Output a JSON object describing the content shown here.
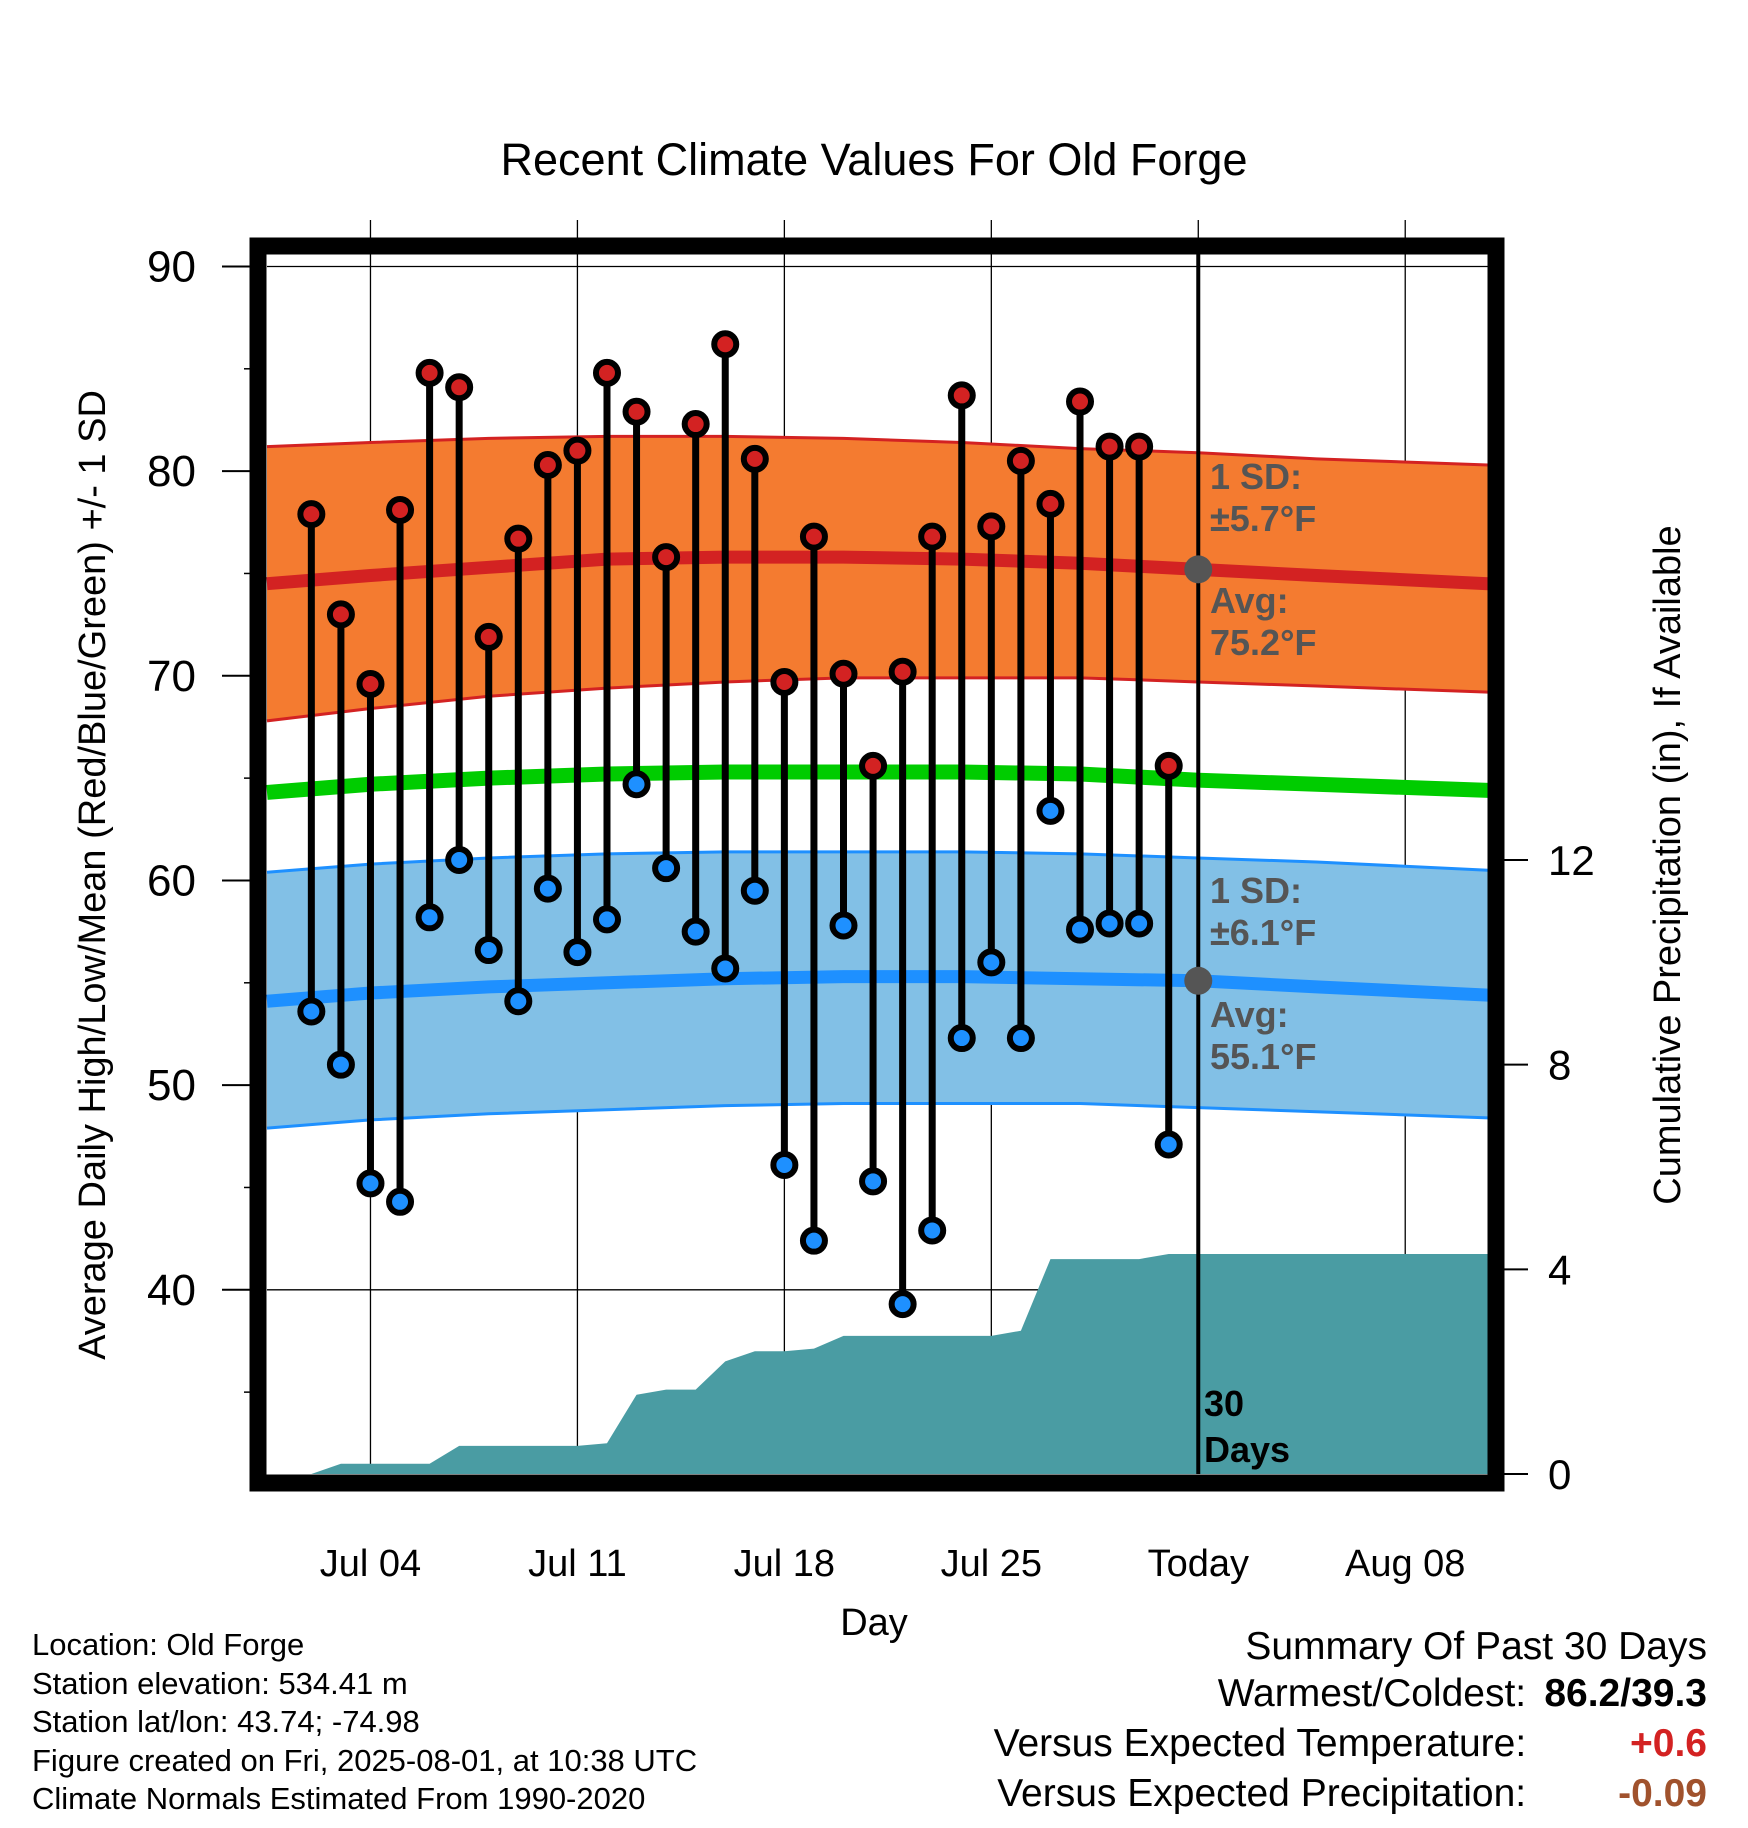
{
  "chart_data": {
    "type": "line",
    "title": "Recent Climate Values For Old Forge",
    "xlabel": "Day",
    "ylabel": "Average Daily High/Low/Mean (Red/Blue/Green) +/- 1 SD",
    "y2label": "Cumulative Precipitation (in), If Available",
    "ylim": [
      31,
      91
    ],
    "y_ticks": [
      "40",
      "50",
      "60",
      "70",
      "80",
      "90"
    ],
    "y2lim": [
      0,
      24
    ],
    "y2_ticks": [
      "0",
      "4",
      "8",
      "12"
    ],
    "x_tick_labels": [
      "Jul 04",
      "Jul 11",
      "Jul 18",
      "Jul 25",
      "Today",
      "Aug 08"
    ],
    "x_tick_days": [
      4,
      11,
      18,
      25,
      32,
      39
    ],
    "x_range_days": [
      0.5,
      41.8
    ],
    "today_day": 32,
    "grid": true,
    "highs": {
      "days": [
        2,
        3,
        4,
        5,
        6,
        7,
        8,
        9,
        10,
        11,
        12,
        13,
        14,
        15,
        16,
        17,
        18,
        19,
        20,
        21,
        22,
        23,
        24,
        25,
        26,
        27,
        28,
        29,
        30,
        31
      ],
      "values": [
        77.9,
        73,
        69.6,
        78.1,
        84.8,
        84.1,
        71.9,
        76.7,
        80.3,
        81,
        84.8,
        82.9,
        75.8,
        82.3,
        86.2,
        80.6,
        69.7,
        76.8,
        70.1,
        65.6,
        70.2,
        76.8,
        83.7,
        77.3,
        80.5,
        78.4,
        83.4,
        81.2,
        81.2,
        65.6
      ]
    },
    "lows": {
      "days": [
        2,
        3,
        4,
        5,
        6,
        7,
        8,
        9,
        10,
        11,
        12,
        13,
        14,
        15,
        16,
        17,
        18,
        19,
        20,
        21,
        22,
        23,
        24,
        25,
        26,
        27,
        28,
        29,
        30,
        31
      ],
      "values": [
        53.6,
        51,
        45.2,
        44.3,
        58.2,
        61,
        56.6,
        54.1,
        59.6,
        56.5,
        58.1,
        64.7,
        60.6,
        57.5,
        55.7,
        59.5,
        46.1,
        42.4,
        57.8,
        45.3,
        39.3,
        42.9,
        52.3,
        56,
        52.3,
        63.4,
        57.6,
        57.9,
        57.9,
        47.1
      ]
    },
    "normal_high": {
      "days": [
        0.5,
        4,
        8,
        12,
        16,
        20,
        24,
        28,
        32,
        36,
        41.8
      ],
      "avg": [
        74.5,
        74.9,
        75.3,
        75.7,
        75.8,
        75.8,
        75.7,
        75.5,
        75.2,
        74.9,
        74.5
      ],
      "upper": [
        81.2,
        81.4,
        81.6,
        81.7,
        81.7,
        81.6,
        81.4,
        81.1,
        80.9,
        80.6,
        80.3
      ],
      "lower": [
        67.8,
        68.4,
        69,
        69.4,
        69.7,
        69.9,
        69.9,
        69.9,
        69.7,
        69.5,
        69.2
      ]
    },
    "normal_mean": {
      "days": [
        0.5,
        4,
        8,
        12,
        16,
        20,
        24,
        28,
        32,
        36,
        41.8
      ],
      "values": [
        64.3,
        64.7,
        65,
        65.2,
        65.3,
        65.3,
        65.3,
        65.2,
        64.9,
        64.7,
        64.4
      ]
    },
    "normal_low": {
      "days": [
        0.5,
        4,
        8,
        12,
        16,
        20,
        24,
        28,
        32,
        36,
        41.8
      ],
      "avg": [
        54.1,
        54.5,
        54.8,
        55,
        55.2,
        55.3,
        55.3,
        55.2,
        55.1,
        54.8,
        54.4
      ],
      "upper": [
        60.4,
        60.8,
        61.1,
        61.3,
        61.4,
        61.4,
        61.4,
        61.3,
        61.1,
        60.9,
        60.5
      ],
      "lower": [
        47.9,
        48.3,
        48.6,
        48.8,
        49,
        49.1,
        49.1,
        49.1,
        48.9,
        48.7,
        48.4
      ]
    },
    "precip_cumulative": {
      "days": [
        2,
        3,
        3.5,
        6,
        7,
        11,
        12,
        13,
        14,
        15,
        16,
        17,
        18,
        19,
        20,
        21,
        22,
        23,
        24,
        25,
        26,
        27,
        28,
        29,
        30,
        31,
        32,
        41.8
      ],
      "values": [
        0,
        0.2,
        0.2,
        0.2,
        0.55,
        0.55,
        0.6,
        1.55,
        1.65,
        1.65,
        2.2,
        2.4,
        2.4,
        2.45,
        2.7,
        2.7,
        2.7,
        2.7,
        2.7,
        2.7,
        2.8,
        4.2,
        4.2,
        4.2,
        4.2,
        4.3,
        4.3,
        4.3
      ]
    },
    "annotations": {
      "high_sd_label": "1 SD:",
      "high_sd_value": "±5.7°F",
      "high_avg_label": "Avg:",
      "high_avg_value": "75.2°F",
      "low_sd_label": "1 SD:",
      "low_sd_value": "±6.1°F",
      "low_avg_label": "Avg:",
      "low_avg_value": "55.1°F",
      "days_label_1": "30",
      "days_label_2": "Days"
    },
    "colors": {
      "high_band": "#f47b30",
      "high_line": "#d32222",
      "mean_line": "#00cc00",
      "low_band": "#82c0e6",
      "low_line": "#1e90ff",
      "precip": "#4a9ca3",
      "high_dot": "#d32222",
      "low_dot": "#1e90ff",
      "annotation": "#555555",
      "avg_marker": "#555555"
    }
  },
  "footer": {
    "location": "Location: Old Forge",
    "elevation": "Station elevation: 534.41 m",
    "latlon": "Station lat/lon: 43.74; -74.98",
    "created": "Figure created on Fri, 2025-08-01, at 10:38 UTC",
    "normals": "Climate Normals Estimated From 1990-2020"
  },
  "summary": {
    "title": "Summary Of Past 30 Days",
    "warmest_label": "Warmest/Coldest:",
    "warmest_value": "86.2/39.3",
    "temp_label": "Versus Expected Temperature:",
    "temp_value": "+0.6",
    "temp_color": "#d32222",
    "precip_label": "Versus Expected Precipitation:",
    "precip_value": "-0.09",
    "precip_color": "#a0522d"
  }
}
